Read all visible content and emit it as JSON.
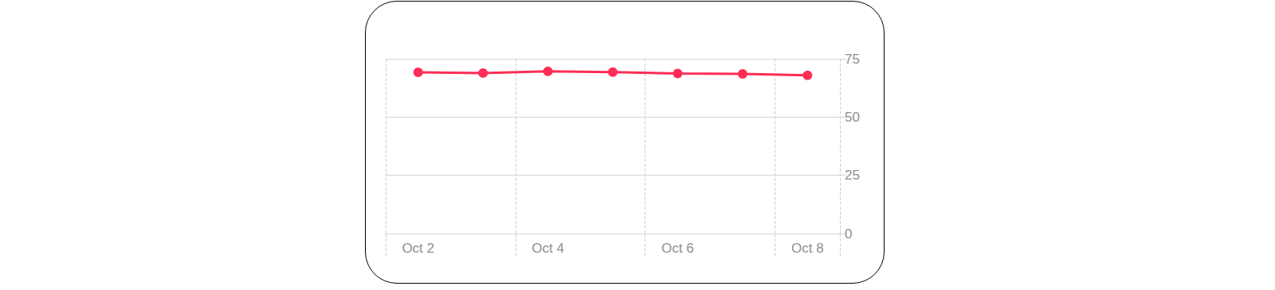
{
  "chart_data": {
    "type": "line",
    "categories": [
      "Oct 2",
      null,
      "Oct 4",
      null,
      "Oct 6",
      null,
      "Oct 8"
    ],
    "values": [
      69.2,
      68.9,
      69.6,
      69.3,
      68.7,
      68.5,
      67.9
    ],
    "color": "#ff2d55",
    "marker": "circle",
    "ylim": [
      0,
      75
    ],
    "yticks": [
      0,
      25,
      50,
      75
    ],
    "grid": true
  }
}
